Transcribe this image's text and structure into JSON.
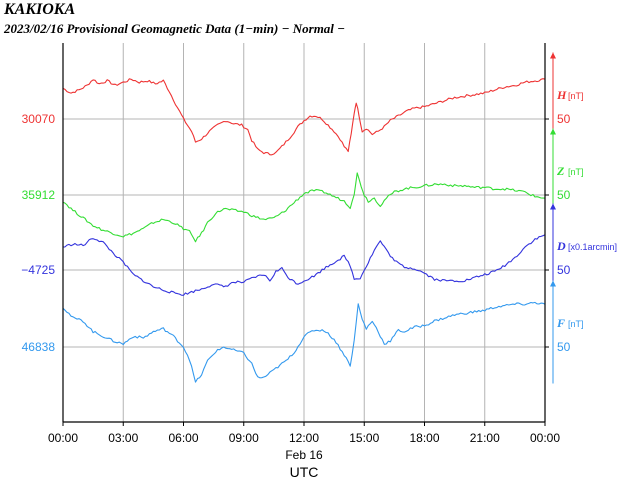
{
  "header": {
    "station": "KAKIOKA",
    "subtitle": "2023/02/16  Provisional Geomagnetic Data (1−min)  − Normal −"
  },
  "chart_data": {
    "type": "line",
    "x_ticks": [
      "00:00",
      "03:00",
      "06:00",
      "09:00",
      "12:00",
      "15:00",
      "18:00",
      "21:00",
      "00:00"
    ],
    "x_range_hours": [
      0,
      24
    ],
    "date_label": "Feb 16",
    "xlabel": "UTC",
    "grid": true,
    "series": [
      {
        "name": "H",
        "unit": "[nT]",
        "color": "#ee3333",
        "ref_label": "30070",
        "scale_label": "50",
        "points": [
          [
            0,
            30090
          ],
          [
            0.4,
            30087
          ],
          [
            0.8,
            30089
          ],
          [
            1.2,
            30092
          ],
          [
            1.5,
            30096
          ],
          [
            1.8,
            30093
          ],
          [
            2.2,
            30095
          ],
          [
            2.6,
            30092
          ],
          [
            3.0,
            30094
          ],
          [
            3.4,
            30096
          ],
          [
            3.8,
            30094
          ],
          [
            4.2,
            30095
          ],
          [
            4.6,
            30093
          ],
          [
            5.0,
            30095
          ],
          [
            5.3,
            30088
          ],
          [
            5.6,
            30080
          ],
          [
            6.0,
            30070
          ],
          [
            6.4,
            30062
          ],
          [
            6.6,
            30055
          ],
          [
            6.9,
            30057
          ],
          [
            7.3,
            30062
          ],
          [
            7.7,
            30066
          ],
          [
            8.1,
            30069
          ],
          [
            8.5,
            30067
          ],
          [
            8.9,
            30066
          ],
          [
            9.2,
            30063
          ],
          [
            9.4,
            30056
          ],
          [
            9.7,
            30050
          ],
          [
            10.0,
            30048
          ],
          [
            10.3,
            30047
          ],
          [
            10.6,
            30048
          ],
          [
            10.9,
            30052
          ],
          [
            11.3,
            30058
          ],
          [
            11.7,
            30065
          ],
          [
            12.0,
            30069
          ],
          [
            12.3,
            30072
          ],
          [
            12.6,
            30072
          ],
          [
            12.9,
            30070
          ],
          [
            13.2,
            30066
          ],
          [
            13.5,
            30062
          ],
          [
            13.8,
            30057
          ],
          [
            14.0,
            30052
          ],
          [
            14.2,
            30049
          ],
          [
            14.35,
            30060
          ],
          [
            14.5,
            30074
          ],
          [
            14.6,
            30081
          ],
          [
            14.75,
            30072
          ],
          [
            14.9,
            30062
          ],
          [
            15.1,
            30064
          ],
          [
            15.4,
            30060
          ],
          [
            15.7,
            30062
          ],
          [
            16.0,
            30065
          ],
          [
            16.3,
            30069
          ],
          [
            16.7,
            30072
          ],
          [
            17.1,
            30075
          ],
          [
            17.5,
            30077
          ],
          [
            18.0,
            30078
          ],
          [
            18.5,
            30080
          ],
          [
            19.0,
            30082
          ],
          [
            19.5,
            30084
          ],
          [
            20.0,
            30085
          ],
          [
            20.5,
            30086
          ],
          [
            21.0,
            30087
          ],
          [
            21.5,
            30089
          ],
          [
            22.0,
            30091
          ],
          [
            22.5,
            30092
          ],
          [
            23.0,
            30094
          ],
          [
            23.5,
            30095
          ],
          [
            24.0,
            30096
          ]
        ]
      },
      {
        "name": "Z",
        "unit": "[nT]",
        "color": "#33dd33",
        "ref_label": "35912",
        "scale_label": "50",
        "points": [
          [
            0,
            35908
          ],
          [
            0.5,
            35902
          ],
          [
            1.0,
            35897
          ],
          [
            1.5,
            35892
          ],
          [
            2.0,
            35889
          ],
          [
            2.5,
            35887
          ],
          [
            3.0,
            35885
          ],
          [
            3.5,
            35887
          ],
          [
            4.0,
            35890
          ],
          [
            4.5,
            35894
          ],
          [
            5.0,
            35896
          ],
          [
            5.5,
            35894
          ],
          [
            6.0,
            35890
          ],
          [
            6.3,
            35888
          ],
          [
            6.6,
            35882
          ],
          [
            6.9,
            35887
          ],
          [
            7.2,
            35894
          ],
          [
            7.6,
            35900
          ],
          [
            8.0,
            35903
          ],
          [
            8.5,
            35902
          ],
          [
            9.0,
            35901
          ],
          [
            9.5,
            35898
          ],
          [
            10.0,
            35896
          ],
          [
            10.5,
            35897
          ],
          [
            11.0,
            35901
          ],
          [
            11.5,
            35907
          ],
          [
            12.0,
            35913
          ],
          [
            12.5,
            35915
          ],
          [
            13.0,
            35914
          ],
          [
            13.5,
            35911
          ],
          [
            14.0,
            35908
          ],
          [
            14.3,
            35904
          ],
          [
            14.5,
            35913
          ],
          [
            14.65,
            35926
          ],
          [
            14.85,
            35918
          ],
          [
            15.0,
            35912
          ],
          [
            15.2,
            35908
          ],
          [
            15.5,
            35910
          ],
          [
            15.8,
            35905
          ],
          [
            16.1,
            35910
          ],
          [
            16.5,
            35914
          ],
          [
            17.0,
            35916
          ],
          [
            17.5,
            35917
          ],
          [
            18.0,
            35918
          ],
          [
            18.5,
            35919
          ],
          [
            19.0,
            35919
          ],
          [
            19.5,
            35918
          ],
          [
            20.0,
            35918
          ],
          [
            20.5,
            35917
          ],
          [
            21.0,
            35917
          ],
          [
            21.5,
            35916
          ],
          [
            22.0,
            35916
          ],
          [
            22.5,
            35915
          ],
          [
            23.0,
            35914
          ],
          [
            23.5,
            35911
          ],
          [
            24.0,
            35910
          ]
        ]
      },
      {
        "name": "D",
        "unit": "[x0.1arcmin]",
        "color": "#3333dd",
        "ref_label": "−4725",
        "scale_label": "50",
        "points": [
          [
            0,
            -4710
          ],
          [
            0.5,
            -4708
          ],
          [
            1.0,
            -4709
          ],
          [
            1.5,
            -4704
          ],
          [
            2.0,
            -4707
          ],
          [
            2.5,
            -4714
          ],
          [
            3.0,
            -4720
          ],
          [
            3.5,
            -4728
          ],
          [
            4.0,
            -4732
          ],
          [
            4.5,
            -4736
          ],
          [
            5.0,
            -4738
          ],
          [
            5.5,
            -4740
          ],
          [
            6.0,
            -4741
          ],
          [
            6.5,
            -4739
          ],
          [
            7.0,
            -4737
          ],
          [
            7.5,
            -4734
          ],
          [
            8.0,
            -4736
          ],
          [
            8.5,
            -4733
          ],
          [
            9.0,
            -4733
          ],
          [
            9.5,
            -4730
          ],
          [
            10.0,
            -4728
          ],
          [
            10.3,
            -4732
          ],
          [
            10.6,
            -4726
          ],
          [
            10.9,
            -4724
          ],
          [
            11.3,
            -4731
          ],
          [
            11.7,
            -4734
          ],
          [
            12.0,
            -4732
          ],
          [
            12.5,
            -4729
          ],
          [
            13.0,
            -4724
          ],
          [
            13.5,
            -4720
          ],
          [
            14.0,
            -4716
          ],
          [
            14.3,
            -4722
          ],
          [
            14.5,
            -4731
          ],
          [
            14.8,
            -4730
          ],
          [
            15.2,
            -4720
          ],
          [
            15.5,
            -4712
          ],
          [
            15.8,
            -4706
          ],
          [
            16.1,
            -4712
          ],
          [
            16.5,
            -4719
          ],
          [
            17.0,
            -4723
          ],
          [
            17.5,
            -4724
          ],
          [
            18.0,
            -4727
          ],
          [
            18.5,
            -4731
          ],
          [
            19.0,
            -4732
          ],
          [
            19.5,
            -4732
          ],
          [
            20.0,
            -4732
          ],
          [
            20.5,
            -4730
          ],
          [
            21.0,
            -4728
          ],
          [
            21.5,
            -4726
          ],
          [
            22.0,
            -4722
          ],
          [
            22.5,
            -4717
          ],
          [
            23.0,
            -4710
          ],
          [
            23.5,
            -4705
          ],
          [
            24.0,
            -4702
          ]
        ]
      },
      {
        "name": "F",
        "unit": "[nT]",
        "color": "#3399ee",
        "ref_label": "46838",
        "scale_label": "50",
        "points": [
          [
            0,
            46864
          ],
          [
            0.5,
            46857
          ],
          [
            1.0,
            46855
          ],
          [
            1.5,
            46848
          ],
          [
            2.0,
            46845
          ],
          [
            2.5,
            46842
          ],
          [
            3.0,
            46840
          ],
          [
            3.5,
            46845
          ],
          [
            4.0,
            46844
          ],
          [
            4.5,
            46848
          ],
          [
            5.0,
            46850
          ],
          [
            5.5,
            46845
          ],
          [
            6.0,
            46838
          ],
          [
            6.3,
            46830
          ],
          [
            6.6,
            46815
          ],
          [
            6.9,
            46820
          ],
          [
            7.2,
            46829
          ],
          [
            7.6,
            46835
          ],
          [
            8.0,
            46838
          ],
          [
            8.5,
            46836
          ],
          [
            9.0,
            46834
          ],
          [
            9.4,
            46827
          ],
          [
            9.7,
            46818
          ],
          [
            10.0,
            46818
          ],
          [
            10.4,
            46822
          ],
          [
            10.8,
            46826
          ],
          [
            11.2,
            46830
          ],
          [
            11.6,
            46836
          ],
          [
            12.0,
            46845
          ],
          [
            12.5,
            46849
          ],
          [
            13.0,
            46849
          ],
          [
            13.5,
            46843
          ],
          [
            14.0,
            46833
          ],
          [
            14.3,
            46826
          ],
          [
            14.5,
            46842
          ],
          [
            14.7,
            46866
          ],
          [
            14.9,
            46856
          ],
          [
            15.1,
            46850
          ],
          [
            15.4,
            46855
          ],
          [
            15.7,
            46848
          ],
          [
            16.0,
            46840
          ],
          [
            16.3,
            46842
          ],
          [
            16.7,
            46849
          ],
          [
            17.0,
            46848
          ],
          [
            17.5,
            46851
          ],
          [
            18.0,
            46852
          ],
          [
            18.5,
            46855
          ],
          [
            19.0,
            46857
          ],
          [
            19.5,
            46859
          ],
          [
            20.0,
            46860
          ],
          [
            20.5,
            46861
          ],
          [
            21.0,
            46862
          ],
          [
            21.5,
            46864
          ],
          [
            22.0,
            46865
          ],
          [
            22.5,
            46866
          ],
          [
            23.0,
            46866
          ],
          [
            23.5,
            46867
          ],
          [
            24.0,
            46866
          ]
        ]
      }
    ]
  }
}
